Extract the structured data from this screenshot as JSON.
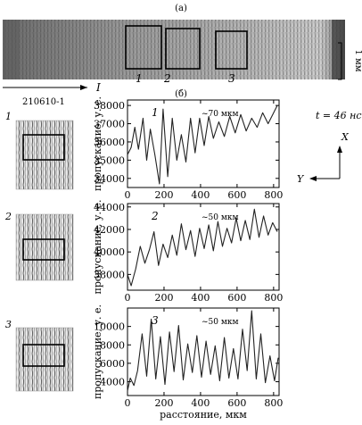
{
  "panel_a_label": "(а)",
  "panel_b_label": "(б)",
  "scale_bar_label": "1 мм",
  "direction_label": "I",
  "shot_id": "210610-1",
  "time_label": "t = 46 нс",
  "axis_x_label": "X",
  "axis_y_label": "Y",
  "region_markers": [
    "1",
    "2",
    "3"
  ],
  "chart_data": [
    {
      "type": "line",
      "panel": "1",
      "annotation": "~70 мкм",
      "xlabel": "",
      "ylabel": "пропускание, у. е.",
      "xlim": [
        0,
        830
      ],
      "ylim": [
        33500,
        38300
      ],
      "xticks": [
        0,
        200,
        400,
        600,
        800
      ],
      "yticks": [
        34000,
        35000,
        36000,
        37000,
        38000
      ],
      "x": [
        0,
        20,
        40,
        60,
        85,
        105,
        125,
        150,
        175,
        195,
        220,
        245,
        270,
        295,
        320,
        345,
        370,
        395,
        420,
        445,
        470,
        500,
        530,
        560,
        590,
        620,
        650,
        680,
        710,
        740,
        770,
        800,
        820
      ],
      "values": [
        35300,
        35700,
        36800,
        35600,
        37300,
        35000,
        36700,
        35300,
        33700,
        37800,
        34100,
        37300,
        35000,
        36400,
        34900,
        37300,
        35400,
        37300,
        35800,
        37400,
        36200,
        37100,
        36300,
        37400,
        36500,
        37500,
        36600,
        37300,
        36800,
        37600,
        37000,
        37600,
        38000
      ]
    },
    {
      "type": "line",
      "panel": "2",
      "annotation": "~50 мкм",
      "xlabel": "",
      "ylabel": "пропускание, у. е.",
      "xlim": [
        0,
        830
      ],
      "ylim": [
        36600,
        44300
      ],
      "xticks": [
        0,
        200,
        400,
        600,
        800
      ],
      "yticks": [
        38000,
        40000,
        42000,
        44000
      ],
      "x": [
        0,
        20,
        45,
        70,
        95,
        120,
        145,
        170,
        195,
        220,
        245,
        270,
        295,
        320,
        345,
        370,
        395,
        420,
        445,
        470,
        495,
        520,
        545,
        570,
        595,
        620,
        645,
        670,
        695,
        720,
        745,
        770,
        795,
        820
      ],
      "values": [
        38000,
        37000,
        38500,
        40500,
        39000,
        40200,
        41800,
        38800,
        40700,
        39500,
        41500,
        39700,
        42500,
        40200,
        41900,
        39600,
        42100,
        40300,
        42400,
        40100,
        42700,
        40500,
        42100,
        40800,
        43000,
        41000,
        42800,
        41100,
        43800,
        41300,
        43200,
        41500,
        42600,
        41800
      ]
    },
    {
      "type": "line",
      "panel": "3",
      "annotation": "~50 мкм",
      "xlabel": "расстояние, мкм",
      "ylabel": "пропускание, у. е.",
      "xlim": [
        0,
        830
      ],
      "ylim": [
        2500,
        12000
      ],
      "xticks": [
        0,
        200,
        400,
        600,
        800
      ],
      "yticks": [
        4000,
        6000,
        8000,
        10000
      ],
      "x": [
        0,
        15,
        35,
        55,
        80,
        105,
        130,
        155,
        180,
        205,
        230,
        255,
        280,
        305,
        330,
        355,
        380,
        405,
        430,
        455,
        480,
        505,
        530,
        555,
        580,
        605,
        630,
        655,
        680,
        705,
        730,
        755,
        780,
        805,
        825
      ],
      "values": [
        3000,
        4400,
        3600,
        5200,
        9200,
        4600,
        10800,
        4300,
        8900,
        3700,
        9400,
        5100,
        10100,
        4200,
        8100,
        5000,
        9000,
        4500,
        8400,
        4800,
        7900,
        4100,
        8800,
        4400,
        7600,
        4300,
        9700,
        5200,
        11700,
        4300,
        9200,
        3900,
        6800,
        4100,
        6600
      ]
    }
  ]
}
